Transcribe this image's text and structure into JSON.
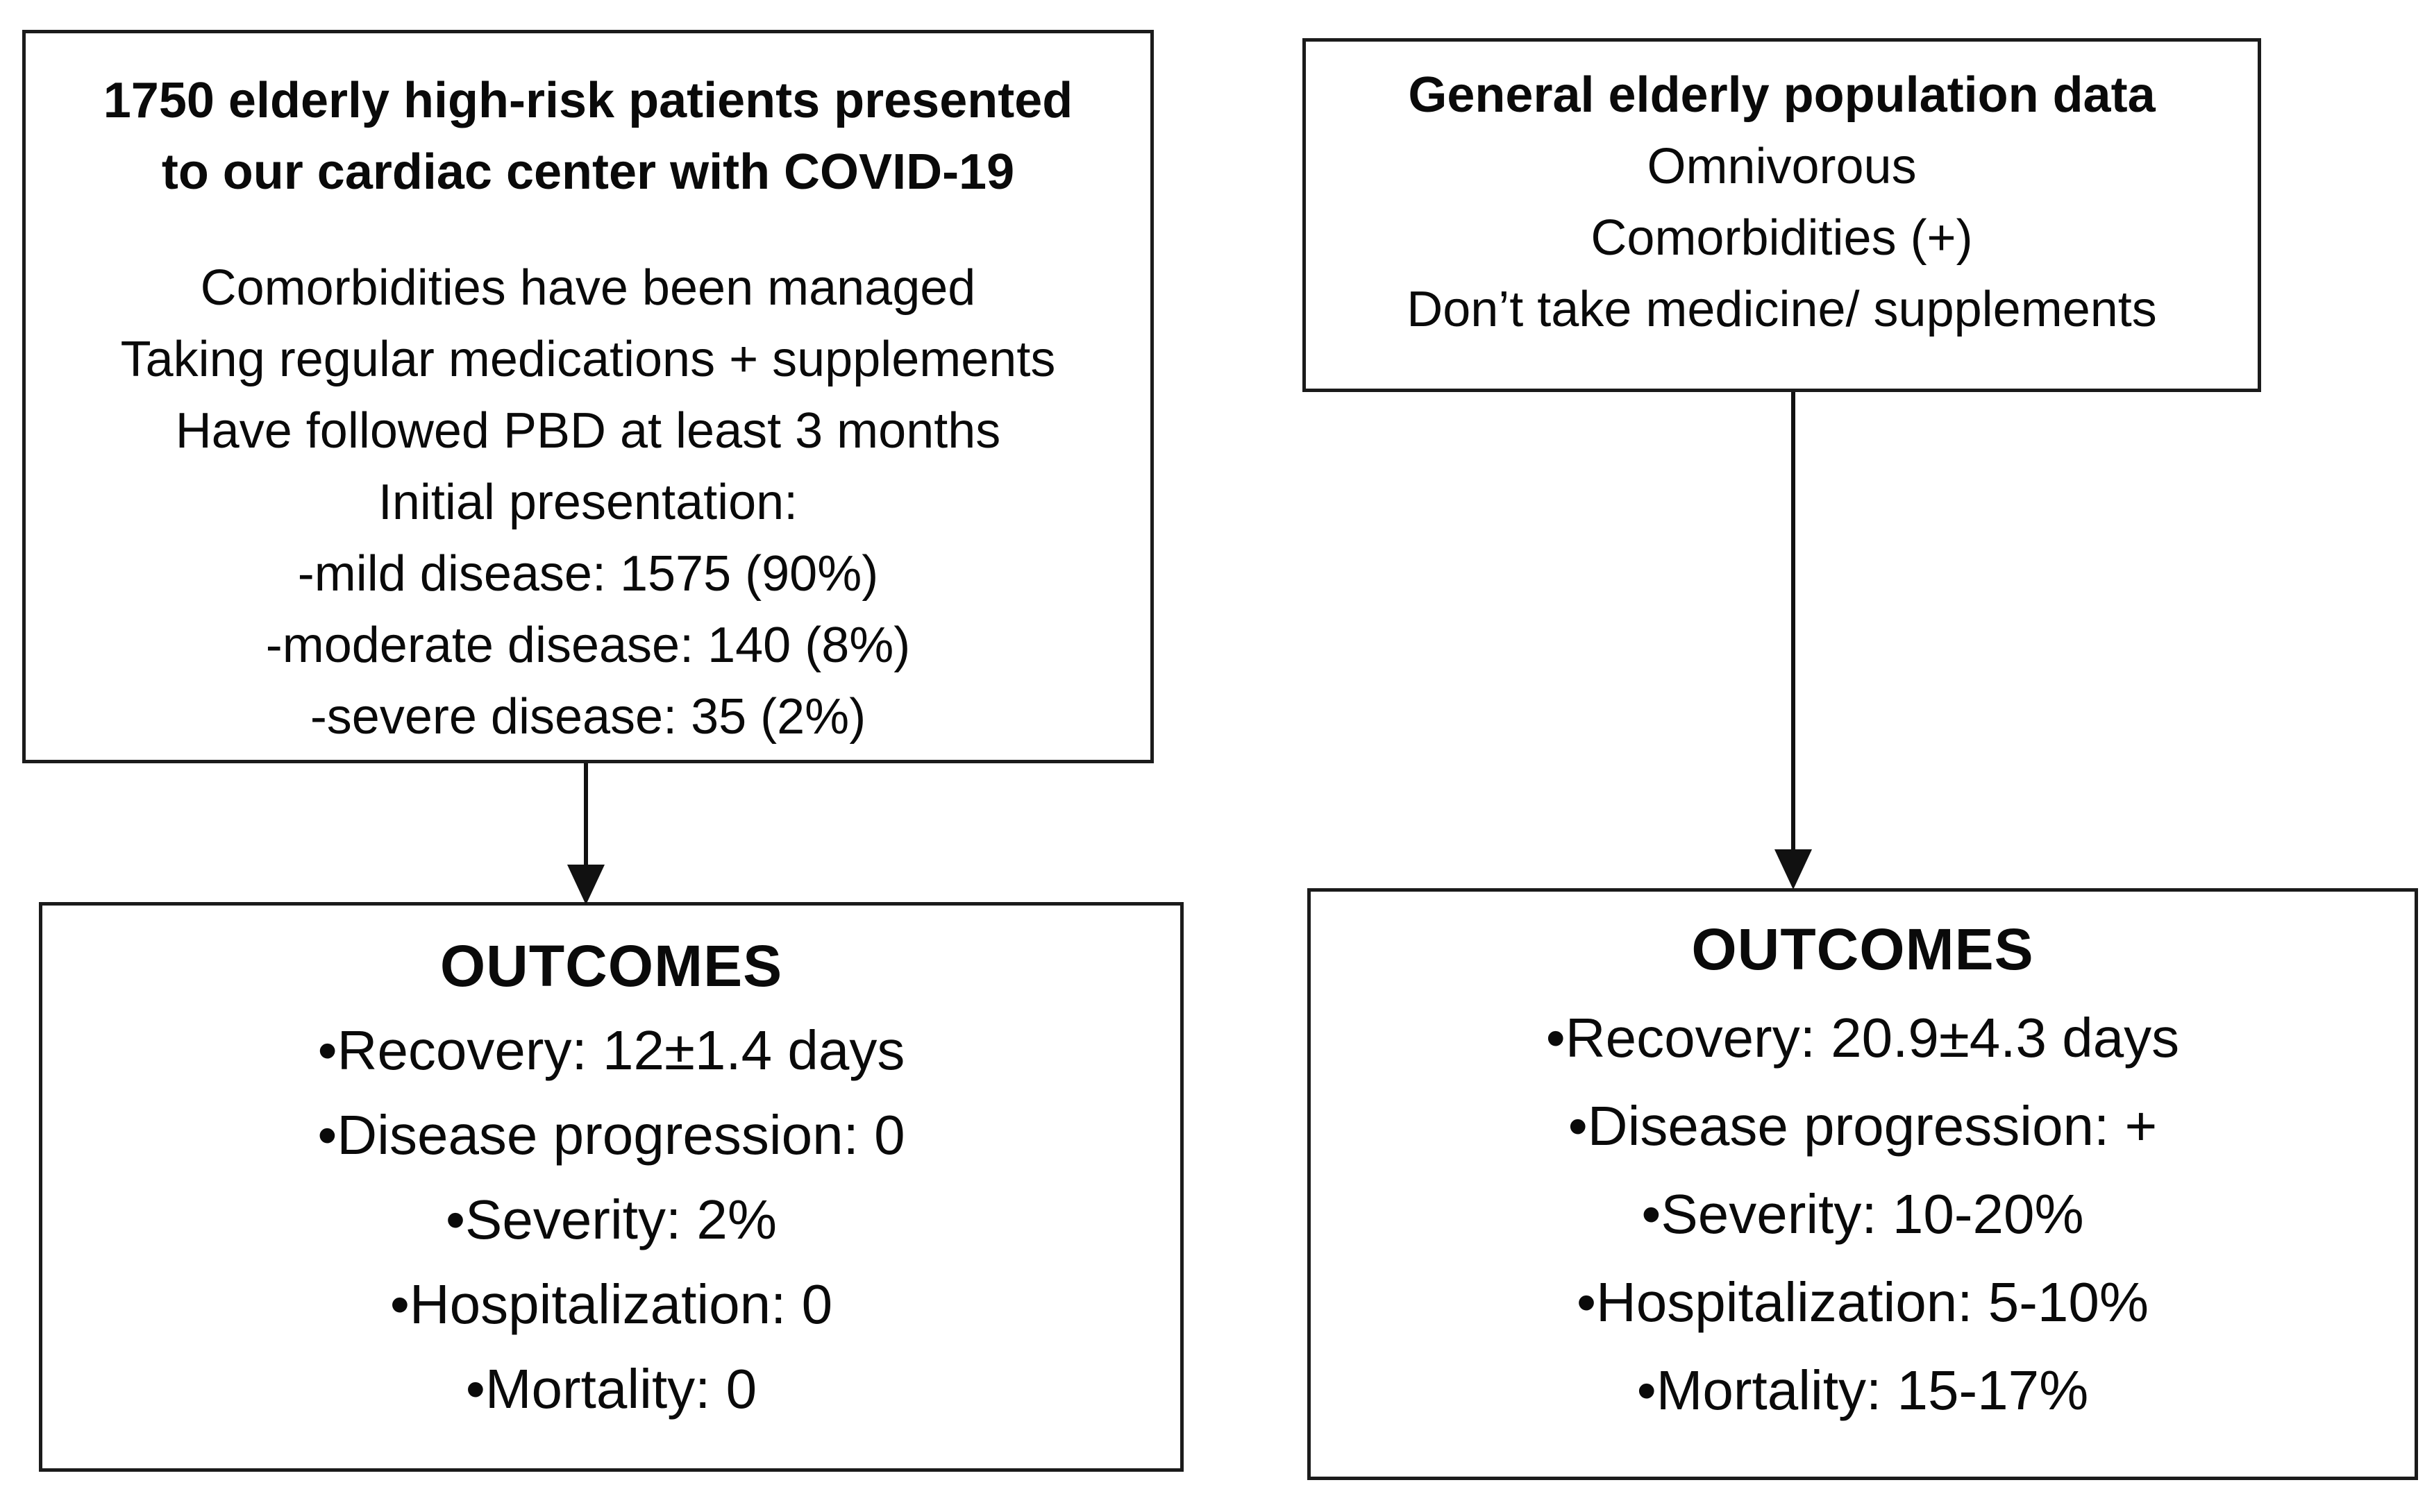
{
  "figure": {
    "background_color": "#ffffff",
    "box_border_color": "#1b1b1b",
    "text_color": "#0a0a0a",
    "arrow_color": "#111111"
  },
  "pbd_cohort_box": {
    "title_lines": [
      "1750 elderly high-risk patients presented",
      "to our cardiac center with COVID-19"
    ],
    "details": [
      "Comorbidities have been managed",
      "Taking regular medications + supplements",
      "Have followed PBD at least 3 months",
      "Initial presentation:",
      "-mild disease: 1575 (90%)",
      "-moderate disease: 140 (8%)",
      "-severe disease: 35 (2%)"
    ]
  },
  "general_population_box": {
    "title": "General elderly population data",
    "details": [
      "Omnivorous",
      "Comorbidities (+)",
      "Don’t take medicine/ supplements"
    ]
  },
  "pbd_outcomes_box": {
    "title": "OUTCOMES",
    "items": [
      "•Recovery: 12±1.4 days",
      "•Disease progression: 0",
      "•Severity: 2%",
      "•Hospitalization: 0",
      "•Mortality: 0"
    ]
  },
  "general_outcomes_box": {
    "title": "OUTCOMES",
    "items": [
      "•Recovery: 20.9±4.3 days",
      "•Disease progression: +",
      "•Severity: 10-20%",
      "•Hospitalization: 5-10%",
      "•Mortality: 15-17%"
    ]
  }
}
